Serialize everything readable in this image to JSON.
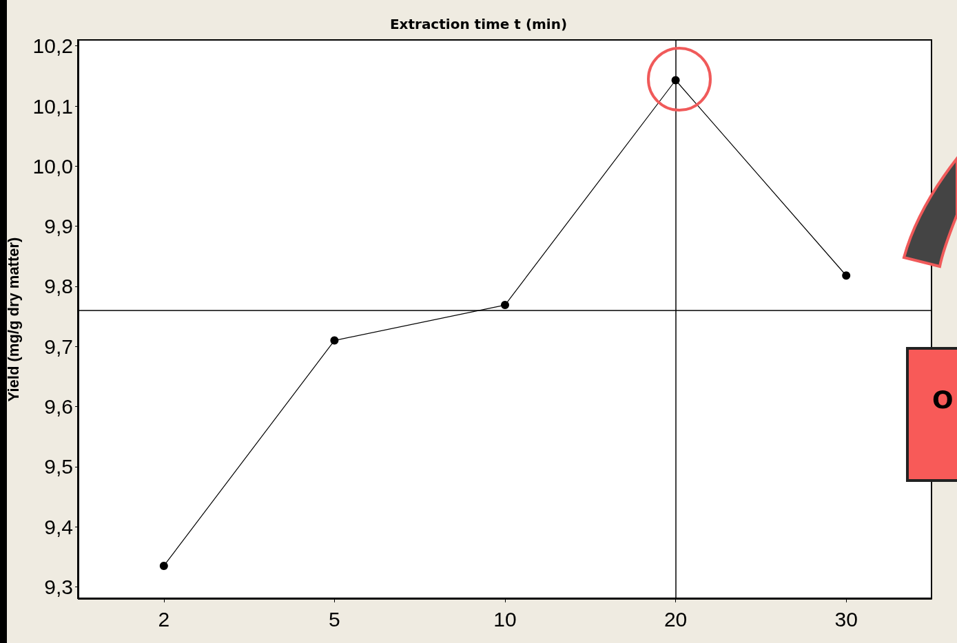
{
  "chart_data": {
    "type": "line",
    "title": "Extraction time t (min)",
    "ylabel": "Yield (mg/g dry matter)",
    "categories": [
      "2",
      "5",
      "10",
      "20",
      "30"
    ],
    "series": [
      {
        "color": "#000000",
        "values": [
          9.335,
          9.71,
          9.769,
          10.143,
          9.818
        ]
      }
    ],
    "ylim": [
      9.28,
      10.21
    ],
    "yticks": [
      {
        "value": 9.3,
        "label": "9,3"
      },
      {
        "value": 9.4,
        "label": "9,4"
      },
      {
        "value": 9.5,
        "label": "9,5"
      },
      {
        "value": 9.6,
        "label": "9,6"
      },
      {
        "value": 9.7,
        "label": "9,7"
      },
      {
        "value": 9.8,
        "label": "9,8"
      },
      {
        "value": 9.9,
        "label": "9,9"
      },
      {
        "value": 10.0,
        "label": "10,0"
      },
      {
        "value": 10.1,
        "label": "10,1"
      },
      {
        "value": 10.2,
        "label": "10,2"
      }
    ],
    "ref_lines": [
      {
        "axis": "y",
        "value": 9.76,
        "color": "#000000"
      },
      {
        "axis": "x",
        "value": "20",
        "color": "#000000"
      }
    ],
    "annotations": [
      "O"
    ],
    "marker": "circle",
    "line_style": "solid",
    "grid": false
  }
}
